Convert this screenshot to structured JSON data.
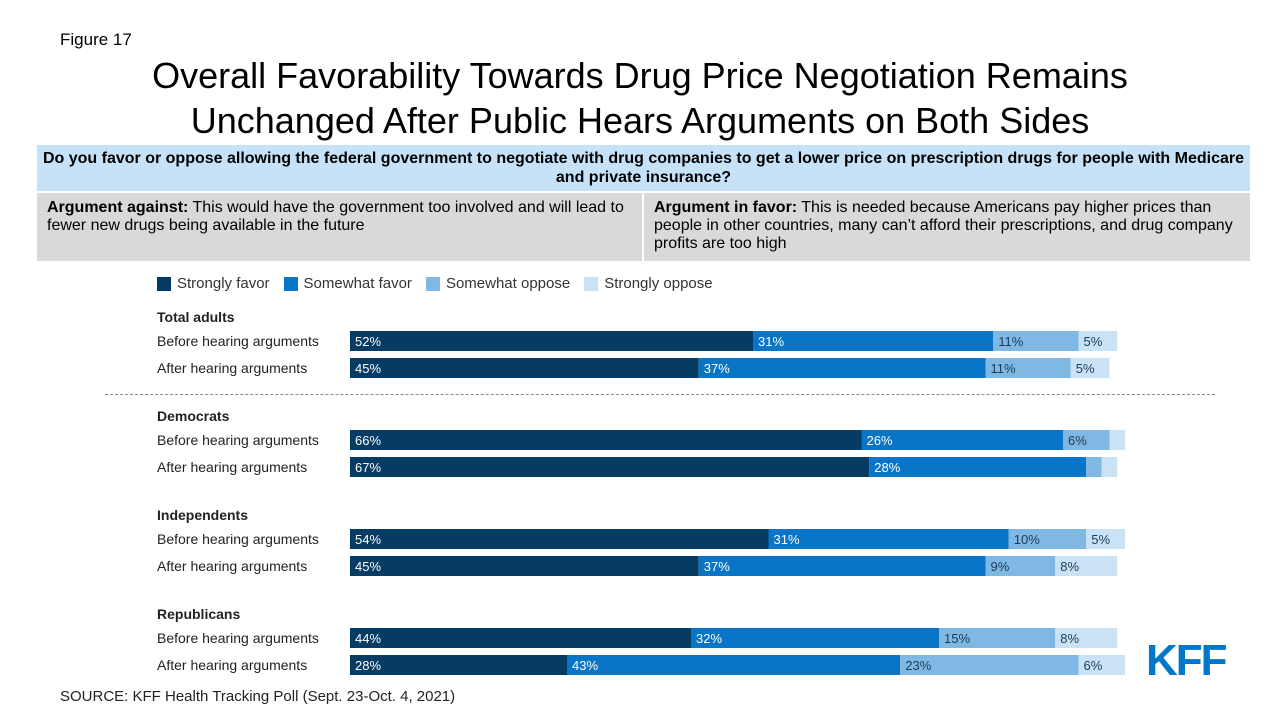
{
  "figure_label": "Figure 17",
  "title_line1": "Overall Favorability Towards Drug Price Negotiation Remains",
  "title_line2": "Unchanged After Public Hears Arguments on Both Sides",
  "question": "Do you favor or oppose allowing the federal government to negotiate with drug companies to get a lower price on prescription drugs for people with Medicare and private insurance?",
  "argument_against": {
    "label": "Argument against:",
    "text": "This would have the government too involved and will lead to fewer new drugs being available in the future"
  },
  "argument_favor": {
    "label": "Argument in favor:",
    "text": "This is needed because Americans pay higher prices than people in other countries, many can’t afford their prescriptions, and drug company profits are too high"
  },
  "source": "SOURCE: KFF Health Tracking Poll (Sept. 23-Oct. 4, 2021)",
  "logo_text": "KFF",
  "colors": {
    "strongly_favor": "#063b64",
    "somewhat_favor": "#0a74c6",
    "somewhat_oppose": "#7fb8e2",
    "strongly_oppose": "#c9e2f6",
    "logo": "#0077c8"
  },
  "chart_data": {
    "type": "bar",
    "orientation": "horizontal",
    "stacked": true,
    "legend_position": "top-left",
    "series": [
      {
        "name": "Strongly favor",
        "color": "#063b64"
      },
      {
        "name": "Somewhat favor",
        "color": "#0a74c6"
      },
      {
        "name": "Somewhat oppose",
        "color": "#7fb8e2"
      },
      {
        "name": "Strongly oppose",
        "color": "#c9e2f6"
      }
    ],
    "groups": [
      {
        "title": "Total adults",
        "rows": [
          {
            "label": "Before hearing arguments",
            "values": [
              52,
              31,
              11,
              5
            ],
            "labels": [
              "52%",
              "31%",
              "11%",
              "5%"
            ]
          },
          {
            "label": "After hearing arguments",
            "values": [
              45,
              37,
              11,
              5
            ],
            "labels": [
              "45%",
              "37%",
              "11%",
              "5%"
            ]
          }
        ]
      },
      {
        "title": "Democrats",
        "rows": [
          {
            "label": "Before hearing arguments",
            "values": [
              66,
              26,
              6,
              2
            ],
            "labels": [
              "66%",
              "26%",
              "6%",
              ""
            ]
          },
          {
            "label": "After hearing arguments",
            "values": [
              67,
              28,
              2,
              2
            ],
            "labels": [
              "67%",
              "28%",
              "",
              ""
            ]
          }
        ]
      },
      {
        "title": "Independents",
        "rows": [
          {
            "label": "Before hearing arguments",
            "values": [
              54,
              31,
              10,
              5
            ],
            "labels": [
              "54%",
              "31%",
              "10%",
              "5%"
            ]
          },
          {
            "label": "After hearing arguments",
            "values": [
              45,
              37,
              9,
              8
            ],
            "labels": [
              "45%",
              "37%",
              "9%",
              "8%"
            ]
          }
        ]
      },
      {
        "title": "Republicans",
        "rows": [
          {
            "label": "Before hearing arguments",
            "values": [
              44,
              32,
              15,
              8
            ],
            "labels": [
              "44%",
              "32%",
              "15%",
              "8%"
            ]
          },
          {
            "label": "After hearing arguments",
            "values": [
              28,
              43,
              23,
              6
            ],
            "labels": [
              "28%",
              "43%",
              "23%",
              "6%"
            ]
          }
        ]
      }
    ]
  }
}
